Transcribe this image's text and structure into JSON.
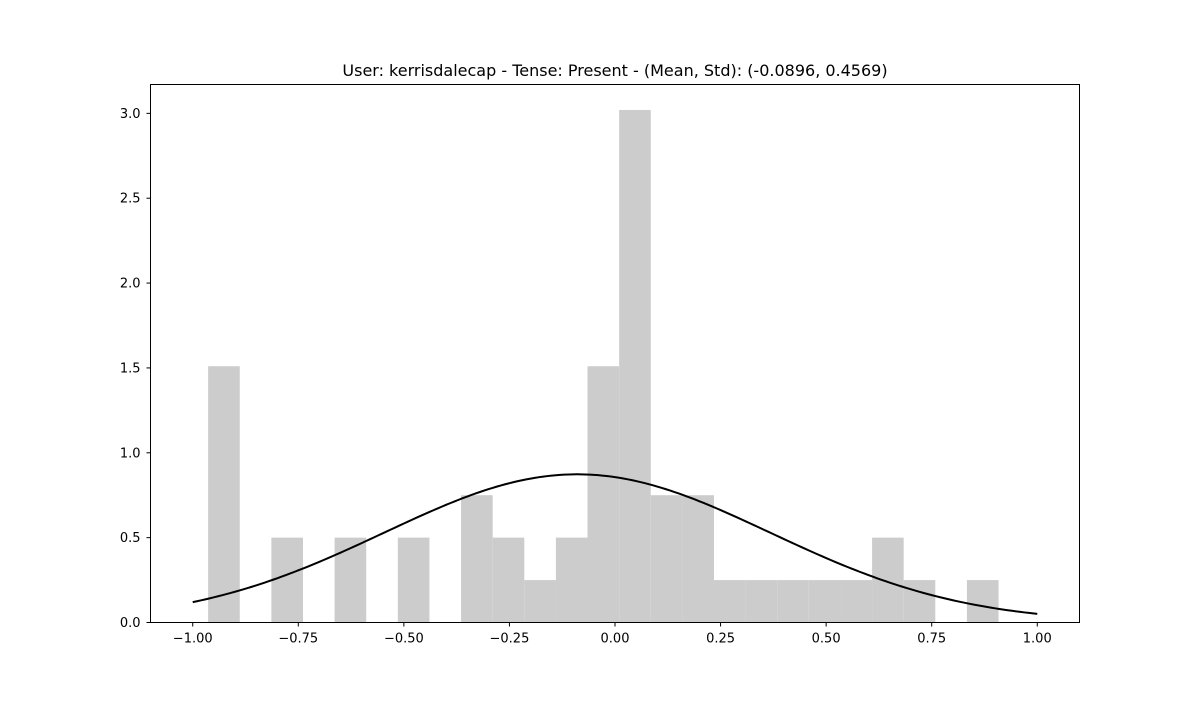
{
  "chart_data": {
    "type": "bar",
    "title": "User: kerrisdalecap - Tense: Present - (Mean, Std): (-0.0896, 0.4569)",
    "xlabel": "",
    "ylabel": "",
    "xlim": [
      -1.1,
      1.1
    ],
    "ylim": [
      0.0,
      3.17
    ],
    "x_ticks": [
      -1.0,
      -0.75,
      -0.5,
      -0.25,
      0.0,
      0.25,
      0.5,
      0.75,
      1.0
    ],
    "x_tick_labels": [
      "−1.00",
      "−0.75",
      "−0.50",
      "−0.25",
      "0.00",
      "0.25",
      "0.50",
      "0.75",
      "1.00"
    ],
    "y_ticks": [
      0.0,
      0.5,
      1.0,
      1.5,
      2.0,
      2.5,
      3.0
    ],
    "y_tick_labels": [
      "0.0",
      "0.5",
      "1.0",
      "1.5",
      "2.0",
      "2.5",
      "3.0"
    ],
    "grid": false,
    "bar_color": "#cccccc",
    "curve_color": "#000000",
    "histogram": {
      "bin_start": -0.9635,
      "bin_width": 0.07487,
      "densities": [
        1.51,
        0.0,
        0.5,
        0.0,
        0.5,
        0.0,
        0.5,
        0.0,
        0.75,
        0.5,
        0.25,
        0.5,
        1.51,
        3.02,
        0.75,
        0.75,
        0.25,
        0.25,
        0.25,
        0.25,
        0.25,
        0.5,
        0.25,
        0.0,
        0.25
      ]
    },
    "normal_curve": {
      "mean": -0.0896,
      "std": 0.4569,
      "x_range": [
        -1.0,
        1.0
      ]
    }
  }
}
